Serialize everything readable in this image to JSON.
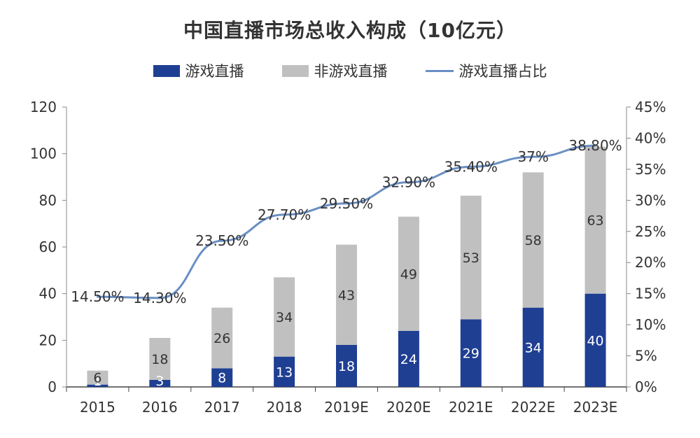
{
  "chart_data": {
    "type": "bar",
    "stacked": true,
    "title": "中国直播市场总收入构成（10亿元）",
    "categories": [
      "2015",
      "2016",
      "2017",
      "2018",
      "2019E",
      "2020E",
      "2021E",
      "2022E",
      "2023E"
    ],
    "series": [
      {
        "name": "游戏直播",
        "kind": "bar",
        "axis": "left",
        "color": "#1f3f93",
        "label_color": "#ffffff",
        "values": [
          1,
          3,
          8,
          13,
          18,
          24,
          29,
          34,
          40
        ],
        "labels": [
          "1",
          "3",
          "8",
          "13",
          "18",
          "24",
          "29",
          "34",
          "40"
        ]
      },
      {
        "name": "非游戏直播",
        "kind": "bar",
        "axis": "left",
        "color": "#c0c0c0",
        "label_color": "#333333",
        "values": [
          6,
          18,
          26,
          34,
          43,
          49,
          53,
          58,
          63
        ],
        "labels": [
          "6",
          "18",
          "26",
          "34",
          "43",
          "49",
          "53",
          "58",
          "63"
        ]
      },
      {
        "name": "游戏直播占比",
        "kind": "line",
        "axis": "right",
        "color": "#6a8fc4",
        "label_color": "#333333",
        "values": [
          14.5,
          14.3,
          23.5,
          27.7,
          29.5,
          32.9,
          35.4,
          37.0,
          38.8
        ],
        "labels": [
          "14.50%",
          "14.30%",
          "23.50%",
          "27.70%",
          "29.50%",
          "32.90%",
          "35.40%",
          "37%",
          "38.80%"
        ]
      }
    ],
    "ylim": [
      0,
      120
    ],
    "y_ticks": [
      "0",
      "20",
      "40",
      "60",
      "80",
      "100",
      "120"
    ],
    "y2lim": [
      0,
      45
    ],
    "y2_ticks": [
      "0%",
      "5%",
      "10%",
      "15%",
      "20%",
      "25%",
      "30%",
      "35%",
      "40%",
      "45%"
    ],
    "xlabel": "",
    "ylabel": "",
    "grid": false,
    "legend": "top-center"
  }
}
